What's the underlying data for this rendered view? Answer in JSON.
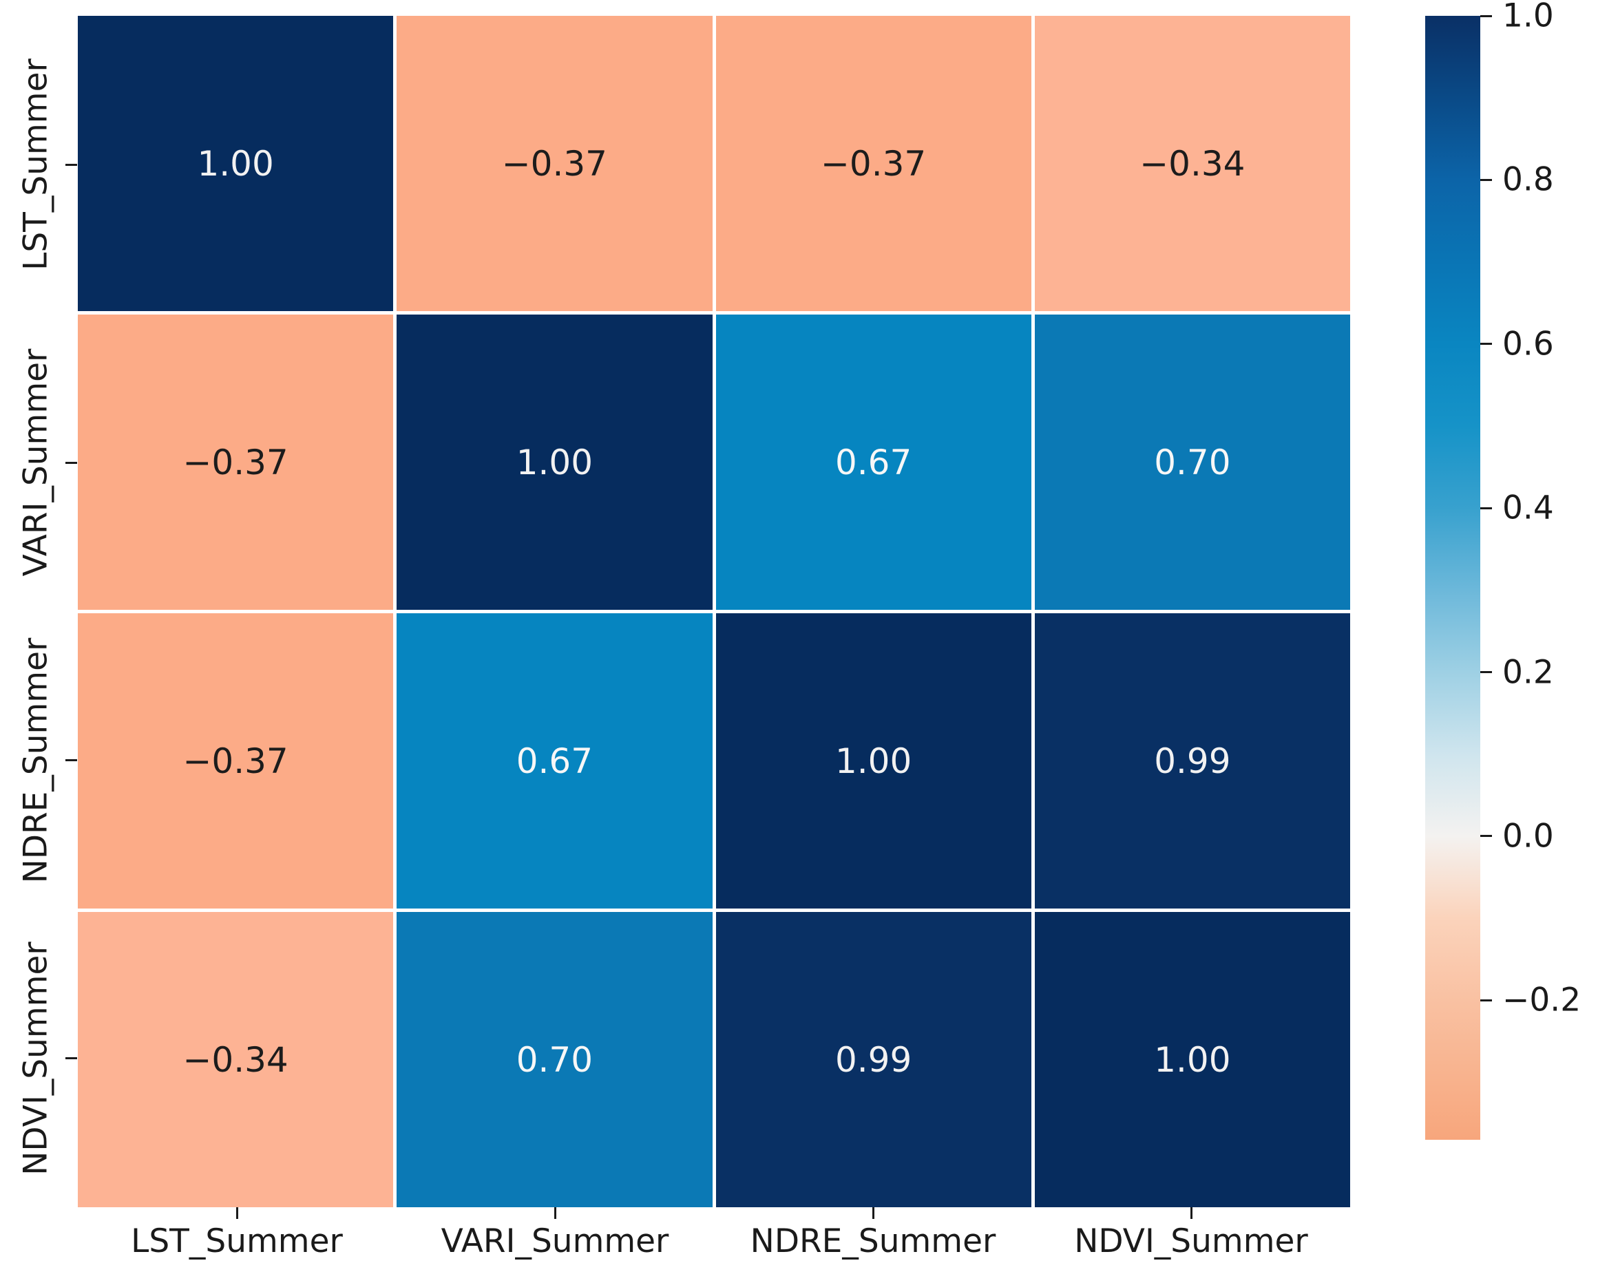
{
  "figure": {
    "background": "#ffffff"
  },
  "chart_data": {
    "type": "heatmap",
    "title": "",
    "xlabel": "",
    "ylabel": "",
    "x_labels": [
      "LST_Summer",
      "VARI_Summer",
      "NDRE_Summer",
      "NDVI_Summer"
    ],
    "y_labels": [
      "LST_Summer",
      "VARI_Summer",
      "NDRE_Summer",
      "NDVI_Summer"
    ],
    "matrix": [
      [
        1.0,
        -0.37,
        -0.37,
        -0.34
      ],
      [
        -0.37,
        1.0,
        0.67,
        0.7
      ],
      [
        -0.37,
        0.67,
        1.0,
        0.99
      ],
      [
        -0.34,
        0.7,
        0.99,
        1.0
      ]
    ],
    "cell_labels": [
      [
        "1.00",
        "−0.37",
        "−0.37",
        "−0.34"
      ],
      [
        "−0.37",
        "1.00",
        "0.67",
        "0.70"
      ],
      [
        "−0.37",
        "0.67",
        "1.00",
        "0.99"
      ],
      [
        "−0.34",
        "0.70",
        "0.99",
        "1.00"
      ]
    ],
    "cell_colors": [
      [
        "#062c5e",
        "#fcab87",
        "#fcab87",
        "#fdb394"
      ],
      [
        "#fcab87",
        "#062c5e",
        "#0685c0",
        "#0b79b5"
      ],
      [
        "#fcab87",
        "#0685c0",
        "#062c5e",
        "#093064"
      ],
      [
        "#fdb394",
        "#0b79b5",
        "#093064",
        "#062c5e"
      ]
    ],
    "cell_text_colors": [
      [
        "#f2f2f2",
        "#1c1c1c",
        "#1c1c1c",
        "#1c1c1c"
      ],
      [
        "#1c1c1c",
        "#f2f2f2",
        "#f7f7f7",
        "#f7f7f7"
      ],
      [
        "#1c1c1c",
        "#f7f7f7",
        "#f2f2f2",
        "#f2f2f2"
      ],
      [
        "#1c1c1c",
        "#f7f7f7",
        "#f2f2f2",
        "#f2f2f2"
      ]
    ],
    "grid_line_color": "#ffffff",
    "tick_color": "#1a1a1a",
    "label_color": "#1a1a1a",
    "legend": "none",
    "colorbar": {
      "position": "right",
      "vmin": -0.37,
      "vmax": 1.0,
      "ticks": [
        {
          "value": 1.0,
          "label": "1.0"
        },
        {
          "value": 0.8,
          "label": "0.8"
        },
        {
          "value": 0.6,
          "label": "0.6"
        },
        {
          "value": 0.4,
          "label": "0.4"
        },
        {
          "value": 0.2,
          "label": "0.2"
        },
        {
          "value": 0.0,
          "label": "0.0"
        },
        {
          "value": -0.2,
          "label": "−0.2"
        }
      ],
      "gradient_stops": [
        {
          "pos": 0.0,
          "color": "#0a3066"
        },
        {
          "pos": 0.073,
          "color": "#0a4a87"
        },
        {
          "pos": 0.146,
          "color": "#0c64a8"
        },
        {
          "pos": 0.219,
          "color": "#0a75b5"
        },
        {
          "pos": 0.292,
          "color": "#0a86c1"
        },
        {
          "pos": 0.365,
          "color": "#1693c8"
        },
        {
          "pos": 0.438,
          "color": "#38a1ce"
        },
        {
          "pos": 0.511,
          "color": "#6cb8da"
        },
        {
          "pos": 0.584,
          "color": "#9ed0e4"
        },
        {
          "pos": 0.657,
          "color": "#cfe5ee"
        },
        {
          "pos": 0.73,
          "color": "#f4f2f0"
        },
        {
          "pos": 0.803,
          "color": "#fbd3bb"
        },
        {
          "pos": 0.876,
          "color": "#f9c1a2"
        },
        {
          "pos": 1.0,
          "color": "#f7a67c"
        }
      ]
    }
  }
}
